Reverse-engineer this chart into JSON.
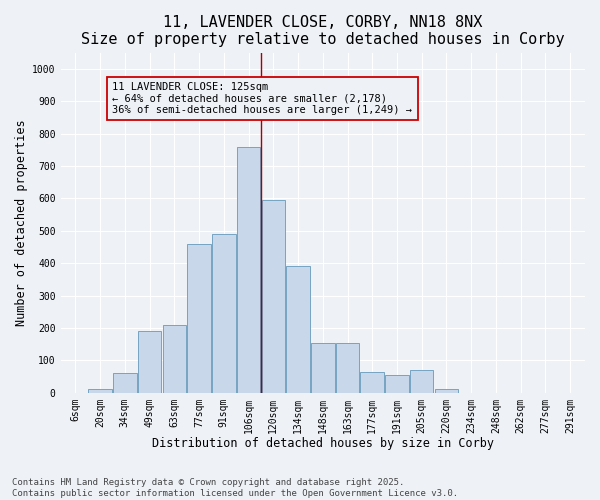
{
  "title_line1": "11, LAVENDER CLOSE, CORBY, NN18 8NX",
  "title_line2": "Size of property relative to detached houses in Corby",
  "xlabel": "Distribution of detached houses by size in Corby",
  "ylabel": "Number of detached properties",
  "bar_labels": [
    "6sqm",
    "20sqm",
    "34sqm",
    "49sqm",
    "63sqm",
    "77sqm",
    "91sqm",
    "106sqm",
    "120sqm",
    "134sqm",
    "148sqm",
    "163sqm",
    "177sqm",
    "191sqm",
    "205sqm",
    "220sqm",
    "234sqm",
    "248sqm",
    "262sqm",
    "277sqm",
    "291sqm"
  ],
  "bar_values": [
    0,
    10,
    60,
    190,
    210,
    460,
    490,
    760,
    595,
    390,
    155,
    155,
    65,
    55,
    70,
    10,
    0,
    0,
    0,
    0,
    0
  ],
  "bar_color": "#c8d8ea",
  "bar_edge_color": "#6699bb",
  "vline_x": 7.5,
  "vline_color": "#aa0000",
  "annotation_text": "11 LAVENDER CLOSE: 125sqm\n← 64% of detached houses are smaller (2,178)\n36% of semi-detached houses are larger (1,249) →",
  "annotation_box_color": "#cc0000",
  "ylim": [
    0,
    1050
  ],
  "yticks": [
    0,
    100,
    200,
    300,
    400,
    500,
    600,
    700,
    800,
    900,
    1000
  ],
  "bg_color": "#eef2f7",
  "footer_text": "Contains HM Land Registry data © Crown copyright and database right 2025.\nContains public sector information licensed under the Open Government Licence v3.0.",
  "title_fontsize": 11,
  "axis_label_fontsize": 8.5,
  "tick_fontsize": 7,
  "footer_fontsize": 6.5,
  "annot_fontsize": 7.5
}
